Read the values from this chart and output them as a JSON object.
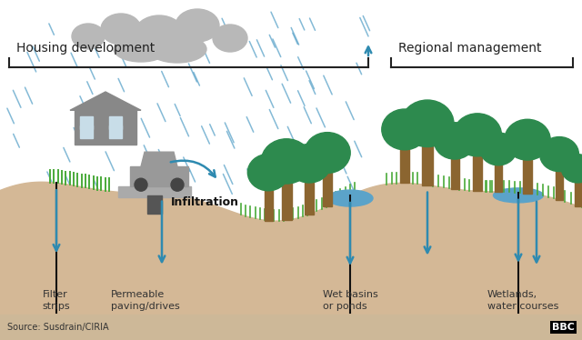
{
  "bg_color": "#ffffff",
  "footer_bg": "#cdb898",
  "ground_color": "#d4b896",
  "rain_color": "#5ba3c9",
  "arrow_color": "#2e8ab0",
  "tree_trunk_color": "#8B6530",
  "tree_top_color": "#2d8a4e",
  "grass_color": "#4aaa3a",
  "house_color": "#888888",
  "car_color": "#999999",
  "pavement_color": "#aaaaaa",
  "water_color": "#5ba3c9",
  "cloud_color": "#b8b8b8",
  "text_color": "#222222",
  "source_text": "Source: Susdrain/CIRIA",
  "housing_label": "Housing development",
  "regional_label": "Regional management",
  "infiltration_label": "Infiltration",
  "labels": [
    "Filter\nstrips",
    "Permeable\npaving/drives",
    "Wet basins\nor ponds",
    "Wetlands,\nwater courses"
  ],
  "figsize": [
    6.4,
    3.74
  ],
  "dpi": 100
}
